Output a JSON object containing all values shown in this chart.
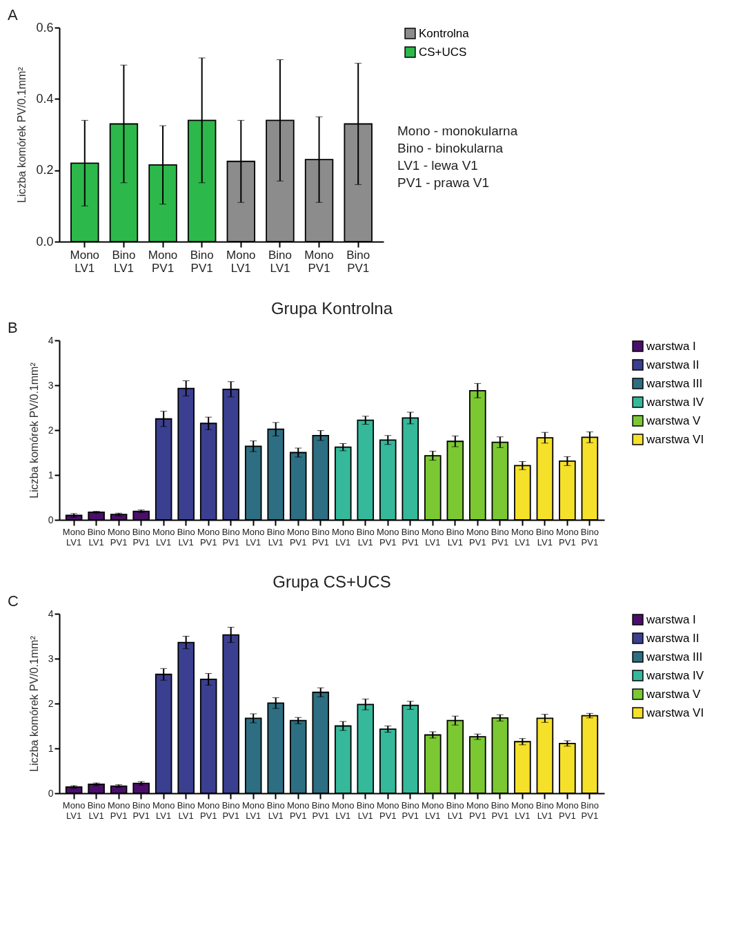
{
  "chart_data": [
    {
      "type": "bar",
      "ylabel": "Liczba komórek PV/0.1mm²",
      "categories": [
        "Mono LV1",
        "Bino LV1",
        "Mono PV1",
        "Bino PV1",
        "Mono LV1",
        "Bino LV1",
        "Mono PV1",
        "Bino PV1"
      ],
      "series": [
        {
          "name": "Kontrolna",
          "color": "#8c8c8c",
          "values": [
            null,
            null,
            null,
            null,
            0.225,
            0.34,
            0.23,
            0.33
          ],
          "errors": [
            null,
            null,
            null,
            null,
            0.115,
            0.17,
            0.12,
            0.17
          ]
        },
        {
          "name": "CS+UCS",
          "color": "#2db84b",
          "values": [
            0.22,
            0.33,
            0.215,
            0.34,
            null,
            null,
            null,
            null
          ],
          "errors": [
            0.12,
            0.165,
            0.11,
            0.175,
            null,
            null,
            null,
            null
          ]
        }
      ],
      "ylim": [
        0,
        0.6
      ],
      "yticks": [
        {
          "value": 0,
          "label": "0.0"
        },
        {
          "value": 0.2,
          "label": "0.2"
        },
        {
          "value": 0.4,
          "label": "0.4"
        },
        {
          "value": 0.6,
          "label": "0.6"
        }
      ],
      "legend": "right",
      "annotations": [
        "A",
        "Mono - monokularna",
        "Bino - binokularna",
        "LV1 - lewa V1",
        "PV1 - prawa V1"
      ]
    },
    {
      "type": "bar",
      "title": "Grupa Kontrolna",
      "ylabel": "Liczba komórek PV/0.1mm²",
      "categories": [
        "Mono LV1",
        "Bino LV1",
        "Mono PV1",
        "Bino PV1",
        "Mono LV1",
        "Bino LV1",
        "Mono PV1",
        "Bino PV1",
        "Mono LV1",
        "Bino LV1",
        "Mono PV1",
        "Bino PV1",
        "Mono LV1",
        "Bino LV1",
        "Mono PV1",
        "Bino PV1",
        "Mono LV1",
        "Bino LV1",
        "Mono PV1",
        "Bino PV1",
        "Mono LV1",
        "Bino LV1",
        "Mono PV1",
        "Bino PV1"
      ],
      "series": [
        {
          "name": "warstwa I",
          "color": "#4b0f6b",
          "values": [
            0.1,
            0.17,
            0.12,
            0.19,
            null,
            null,
            null,
            null,
            null,
            null,
            null,
            null,
            null,
            null,
            null,
            null,
            null,
            null,
            null,
            null,
            null,
            null,
            null,
            null
          ],
          "errors": [
            0.04,
            0.02,
            0.03,
            0.03,
            null,
            null,
            null,
            null,
            null,
            null,
            null,
            null,
            null,
            null,
            null,
            null,
            null,
            null,
            null,
            null,
            null,
            null,
            null,
            null
          ]
        },
        {
          "name": "warstwa II",
          "color": "#3b3f8f",
          "values": [
            null,
            null,
            null,
            null,
            2.25,
            2.93,
            2.15,
            2.91,
            null,
            null,
            null,
            null,
            null,
            null,
            null,
            null,
            null,
            null,
            null,
            null,
            null,
            null,
            null,
            null
          ],
          "errors": [
            null,
            null,
            null,
            null,
            0.17,
            0.17,
            0.14,
            0.17,
            null,
            null,
            null,
            null,
            null,
            null,
            null,
            null,
            null,
            null,
            null,
            null,
            null,
            null,
            null,
            null
          ]
        },
        {
          "name": "warstwa III",
          "color": "#2d6e82",
          "values": [
            null,
            null,
            null,
            null,
            null,
            null,
            null,
            null,
            1.64,
            2.02,
            1.5,
            1.88,
            null,
            null,
            null,
            null,
            null,
            null,
            null,
            null,
            null,
            null,
            null,
            null
          ],
          "errors": [
            null,
            null,
            null,
            null,
            null,
            null,
            null,
            null,
            0.12,
            0.15,
            0.1,
            0.11,
            null,
            null,
            null,
            null,
            null,
            null,
            null,
            null,
            null,
            null,
            null,
            null
          ]
        },
        {
          "name": "warstwa IV",
          "color": "#35b99a",
          "values": [
            null,
            null,
            null,
            null,
            null,
            null,
            null,
            null,
            null,
            null,
            null,
            null,
            1.62,
            2.22,
            1.78,
            2.27,
            null,
            null,
            null,
            null,
            null,
            null,
            null,
            null
          ],
          "errors": [
            null,
            null,
            null,
            null,
            null,
            null,
            null,
            null,
            null,
            null,
            null,
            null,
            0.08,
            0.09,
            0.1,
            0.13,
            null,
            null,
            null,
            null,
            null,
            null,
            null,
            null
          ]
        },
        {
          "name": "warstwa V",
          "color": "#7cc832",
          "values": [
            null,
            null,
            null,
            null,
            null,
            null,
            null,
            null,
            null,
            null,
            null,
            null,
            null,
            null,
            null,
            null,
            1.43,
            1.75,
            2.88,
            1.73,
            null,
            null,
            null,
            null
          ],
          "errors": [
            null,
            null,
            null,
            null,
            null,
            null,
            null,
            null,
            null,
            null,
            null,
            null,
            null,
            null,
            null,
            null,
            0.1,
            0.12,
            0.16,
            0.12,
            null,
            null,
            null,
            null
          ]
        },
        {
          "name": "warstwa VI",
          "color": "#f5e02a",
          "values": [
            null,
            null,
            null,
            null,
            null,
            null,
            null,
            null,
            null,
            null,
            null,
            null,
            null,
            null,
            null,
            null,
            null,
            null,
            null,
            null,
            1.21,
            1.83,
            1.31,
            1.84
          ],
          "errors": [
            null,
            null,
            null,
            null,
            null,
            null,
            null,
            null,
            null,
            null,
            null,
            null,
            null,
            null,
            null,
            null,
            null,
            null,
            null,
            null,
            0.09,
            0.12,
            0.1,
            0.12
          ]
        }
      ],
      "ylim": [
        0,
        4
      ],
      "yticks": [
        0,
        1,
        2,
        3,
        4
      ],
      "legend": "right",
      "annotations": [
        "B"
      ]
    },
    {
      "type": "bar",
      "title": "Grupa CS+UCS",
      "ylabel": "Liczba komórek PV/0.1mm²",
      "categories": [
        "Mono LV1",
        "Bino LV1",
        "Mono PV1",
        "Bino PV1",
        "Mono LV1",
        "Bino LV1",
        "Mono PV1",
        "Bino PV1",
        "Mono LV1",
        "Bino LV1",
        "Mono PV1",
        "Bino PV1",
        "Mono LV1",
        "Bino LV1",
        "Mono PV1",
        "Bino PV1",
        "Mono LV1",
        "Bino LV1",
        "Mono PV1",
        "Bino PV1",
        "Mono LV1",
        "Bino LV1",
        "Mono PV1",
        "Bino PV1"
      ],
      "series": [
        {
          "name": "warstwa I",
          "color": "#4b0f6b",
          "values": [
            0.14,
            0.2,
            0.16,
            0.22,
            null,
            null,
            null,
            null,
            null,
            null,
            null,
            null,
            null,
            null,
            null,
            null,
            null,
            null,
            null,
            null,
            null,
            null,
            null,
            null
          ],
          "errors": [
            0.03,
            0.03,
            0.03,
            0.04,
            null,
            null,
            null,
            null,
            null,
            null,
            null,
            null,
            null,
            null,
            null,
            null,
            null,
            null,
            null,
            null,
            null,
            null,
            null,
            null
          ]
        },
        {
          "name": "warstwa II",
          "color": "#3b3f8f",
          "values": [
            null,
            null,
            null,
            null,
            2.65,
            3.36,
            2.54,
            3.53,
            null,
            null,
            null,
            null,
            null,
            null,
            null,
            null,
            null,
            null,
            null,
            null,
            null,
            null,
            null,
            null
          ],
          "errors": [
            null,
            null,
            null,
            null,
            0.13,
            0.14,
            0.13,
            0.17,
            null,
            null,
            null,
            null,
            null,
            null,
            null,
            null,
            null,
            null,
            null,
            null,
            null,
            null,
            null,
            null
          ]
        },
        {
          "name": "warstwa III",
          "color": "#2d6e82",
          "values": [
            null,
            null,
            null,
            null,
            null,
            null,
            null,
            null,
            1.67,
            2.01,
            1.62,
            2.25,
            null,
            null,
            null,
            null,
            null,
            null,
            null,
            null,
            null,
            null,
            null,
            null
          ],
          "errors": [
            null,
            null,
            null,
            null,
            null,
            null,
            null,
            null,
            0.1,
            0.12,
            0.07,
            0.1,
            null,
            null,
            null,
            null,
            null,
            null,
            null,
            null,
            null,
            null,
            null,
            null
          ]
        },
        {
          "name": "warstwa IV",
          "color": "#35b99a",
          "values": [
            null,
            null,
            null,
            null,
            null,
            null,
            null,
            null,
            null,
            null,
            null,
            null,
            1.5,
            1.98,
            1.43,
            1.96,
            null,
            null,
            null,
            null,
            null,
            null,
            null,
            null
          ],
          "errors": [
            null,
            null,
            null,
            null,
            null,
            null,
            null,
            null,
            null,
            null,
            null,
            null,
            0.1,
            0.12,
            0.07,
            0.09,
            null,
            null,
            null,
            null,
            null,
            null,
            null,
            null
          ]
        },
        {
          "name": "warstwa V",
          "color": "#7cc832",
          "values": [
            null,
            null,
            null,
            null,
            null,
            null,
            null,
            null,
            null,
            null,
            null,
            null,
            null,
            null,
            null,
            null,
            1.3,
            1.62,
            1.26,
            1.68,
            null,
            null,
            null,
            null
          ],
          "errors": [
            null,
            null,
            null,
            null,
            null,
            null,
            null,
            null,
            null,
            null,
            null,
            null,
            null,
            null,
            null,
            null,
            0.07,
            0.1,
            0.06,
            0.07,
            null,
            null,
            null,
            null
          ]
        },
        {
          "name": "warstwa VI",
          "color": "#f5e02a",
          "values": [
            null,
            null,
            null,
            null,
            null,
            null,
            null,
            null,
            null,
            null,
            null,
            null,
            null,
            null,
            null,
            null,
            null,
            null,
            null,
            null,
            1.15,
            1.67,
            1.11,
            1.73
          ],
          "errors": [
            null,
            null,
            null,
            null,
            null,
            null,
            null,
            null,
            null,
            null,
            null,
            null,
            null,
            null,
            null,
            null,
            null,
            null,
            null,
            null,
            0.07,
            0.09,
            0.06,
            0.05
          ]
        }
      ],
      "ylim": [
        0,
        4
      ],
      "yticks": [
        0,
        1,
        2,
        3,
        4
      ],
      "legend": "right",
      "annotations": [
        "C"
      ]
    }
  ]
}
